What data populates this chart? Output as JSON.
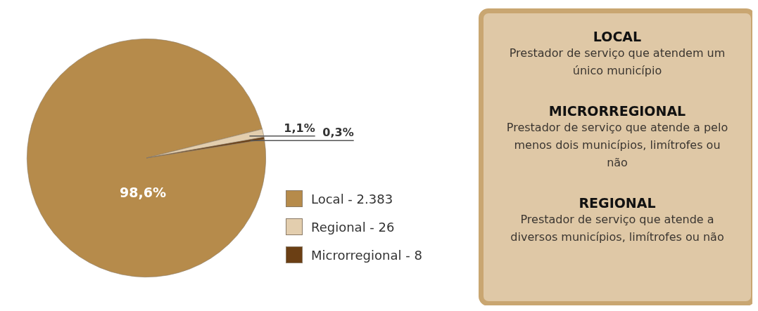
{
  "chart_data": [
    {
      "type": "pie",
      "categories": [
        "Local - 2.383",
        "Regional - 26",
        "Microrregional - 8"
      ],
      "values": [
        98.6,
        1.1,
        0.3
      ],
      "colors": [
        "#b68b4b",
        "#e3ceae",
        "#6b3f14"
      ],
      "value_labels": [
        "98,6%",
        "1,1%",
        "0,3%"
      ],
      "legend": "bottom right"
    },
    {
      "type": "other",
      "annotations": [
        "LOCAL",
        "Prestador de serviço que atendem um único município",
        "MICRORREGIONAL",
        "Prestador de serviço que atende a pelo menos dois municípios, limítrofes ou não",
        "REGIONAL",
        "Prestador de serviço que atende a diversos municípios, limítrofes ou não"
      ]
    }
  ]
}
